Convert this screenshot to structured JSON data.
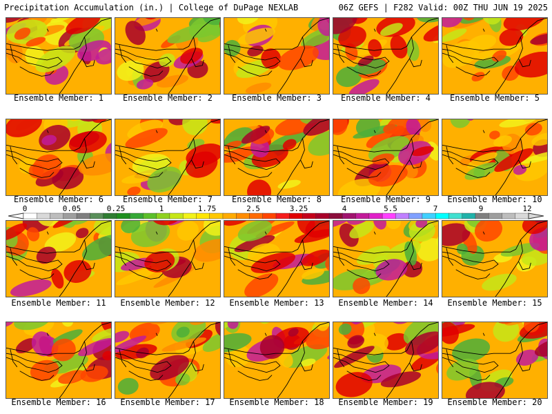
{
  "header": {
    "left": "Precipitation Accumulation (in.) | College of DuPage NEXLAB",
    "right": "06Z GEFS | F282 Valid: 00Z THU JUN 19 2025"
  },
  "members": [
    {
      "label": "Ensemble Member: 1"
    },
    {
      "label": "Ensemble Member: 2"
    },
    {
      "label": "Ensemble Member: 3"
    },
    {
      "label": "Ensemble Member: 4"
    },
    {
      "label": "Ensemble Member: 5"
    },
    {
      "label": "Ensemble Member: 6"
    },
    {
      "label": "Ensemble Member: 7"
    },
    {
      "label": "Ensemble Member: 8"
    },
    {
      "label": "Ensemble Member: 9"
    },
    {
      "label": "Ensemble Member: 10"
    },
    {
      "label": "Ensemble Member: 11"
    },
    {
      "label": "Ensemble Member: 12"
    },
    {
      "label": "Ensemble Member: 13"
    },
    {
      "label": "Ensemble Member: 14"
    },
    {
      "label": "Ensemble Member: 15"
    },
    {
      "label": "Ensemble Member: 16"
    },
    {
      "label": "Ensemble Member: 17"
    },
    {
      "label": "Ensemble Member: 18"
    },
    {
      "label": "Ensemble Member: 19"
    },
    {
      "label": "Ensemble Member: 20"
    }
  ],
  "colorbar": {
    "tick_labels": [
      "0",
      "0.05",
      "0.25",
      "1",
      "1.75",
      "2.5",
      "3.25",
      "4",
      "5.5",
      "7",
      "9",
      "12"
    ],
    "colors": [
      "#ffffff",
      "#d9d9d9",
      "#bdbdbd",
      "#9e9e9e",
      "#7f7f7f",
      "#5a8f5a",
      "#2f7d32",
      "#1e8f1e",
      "#36a836",
      "#5cbf2a",
      "#8fd11f",
      "#c6e617",
      "#f2f21a",
      "#ffe600",
      "#ffc800",
      "#ffab00",
      "#ff8c00",
      "#ff6a00",
      "#ff4500",
      "#f51c1c",
      "#e00000",
      "#c4001a",
      "#a8002a",
      "#8b0d3c",
      "#a0136e",
      "#c21b9a",
      "#e020c8",
      "#ff40ff",
      "#c080ff",
      "#80a0ff",
      "#40d0ff",
      "#00ffff",
      "#40e0d0",
      "#20b2aa",
      "#7f7f7f",
      "#9e9e9e",
      "#bdbdbd",
      "#d9d9d9"
    ]
  }
}
